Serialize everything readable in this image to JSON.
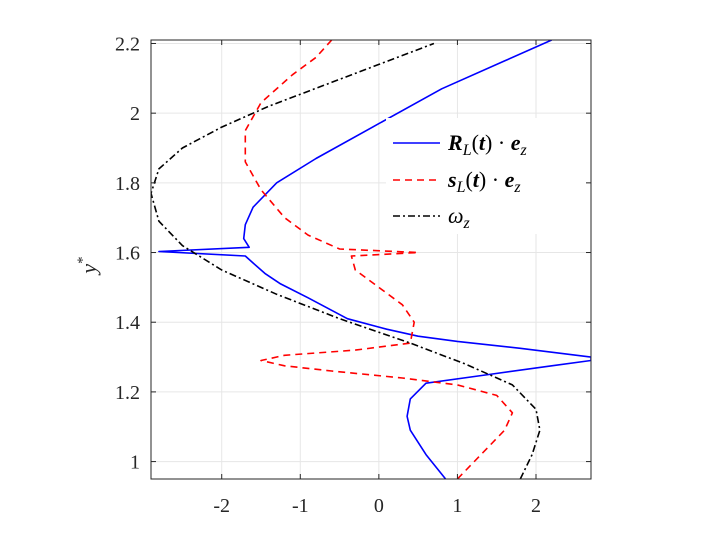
{
  "chart_data": {
    "type": "line",
    "xlabel": "",
    "ylabel": "y*",
    "xlim": [
      -2.9,
      2.7
    ],
    "ylim": [
      0.95,
      2.21
    ],
    "xticks": [
      -2,
      -1,
      0,
      1,
      2
    ],
    "xtick_labels": [
      "-2",
      "-1",
      "0",
      "1",
      "2"
    ],
    "yticks": [
      1,
      1.2,
      1.4,
      1.6,
      1.8,
      2,
      2.2
    ],
    "ytick_labels": [
      "1",
      "1.2",
      "1.4",
      "1.6",
      "1.8",
      "2",
      "2.2"
    ],
    "grid": true,
    "legend_position": "top-right",
    "series": [
      {
        "key": "R",
        "legend_parts": [
          "R",
          "L",
          "(",
          "t",
          ") · ",
          "e",
          "z"
        ],
        "color": "#0000ff",
        "dash": "solid",
        "points": [
          [
            0.85,
            0.95
          ],
          [
            0.6,
            1.02
          ],
          [
            0.4,
            1.09
          ],
          [
            0.36,
            1.13
          ],
          [
            0.4,
            1.18
          ],
          [
            0.6,
            1.225
          ],
          [
            1.4,
            1.25
          ],
          [
            2.2,
            1.275
          ],
          [
            2.7,
            1.29
          ],
          [
            2.7,
            1.3
          ],
          [
            1.8,
            1.325
          ],
          [
            1.0,
            1.345
          ],
          [
            0.5,
            1.36
          ],
          [
            0.1,
            1.38
          ],
          [
            -0.4,
            1.41
          ],
          [
            -0.9,
            1.47
          ],
          [
            -1.25,
            1.51
          ],
          [
            -1.45,
            1.54
          ],
          [
            -1.6,
            1.57
          ],
          [
            -1.7,
            1.59
          ],
          [
            -2.8,
            1.603
          ],
          [
            -1.65,
            1.615
          ],
          [
            -1.72,
            1.64
          ],
          [
            -1.7,
            1.68
          ],
          [
            -1.6,
            1.73
          ],
          [
            -1.3,
            1.8
          ],
          [
            -0.8,
            1.87
          ],
          [
            0.0,
            1.97
          ],
          [
            0.8,
            2.07
          ],
          [
            1.6,
            2.15
          ],
          [
            2.2,
            2.21
          ]
        ]
      },
      {
        "key": "s",
        "legend_parts": [
          "s",
          "L",
          "(",
          "t",
          ") · ",
          "e",
          "z"
        ],
        "color": "#ff0000",
        "dash": "dashed",
        "points": [
          [
            1.0,
            0.95
          ],
          [
            1.3,
            1.02
          ],
          [
            1.6,
            1.09
          ],
          [
            1.7,
            1.14
          ],
          [
            1.5,
            1.19
          ],
          [
            1.0,
            1.22
          ],
          [
            0.3,
            1.24
          ],
          [
            -0.6,
            1.26
          ],
          [
            -1.2,
            1.275
          ],
          [
            -1.5,
            1.29
          ],
          [
            -1.2,
            1.305
          ],
          [
            -0.3,
            1.32
          ],
          [
            0.4,
            1.34
          ],
          [
            0.45,
            1.4
          ],
          [
            0.3,
            1.45
          ],
          [
            0.0,
            1.5
          ],
          [
            -0.3,
            1.55
          ],
          [
            -0.35,
            1.59
          ],
          [
            0.5,
            1.6
          ],
          [
            -0.5,
            1.61
          ],
          [
            -0.9,
            1.65
          ],
          [
            -1.2,
            1.7
          ],
          [
            -1.5,
            1.78
          ],
          [
            -1.7,
            1.86
          ],
          [
            -1.7,
            1.95
          ],
          [
            -1.5,
            2.03
          ],
          [
            -1.1,
            2.11
          ],
          [
            -0.8,
            2.16
          ],
          [
            -0.6,
            2.21
          ]
        ]
      },
      {
        "key": "w",
        "legend_parts": [
          "ω",
          "z"
        ],
        "color": "#000000",
        "dash": "dashdot",
        "points": [
          [
            1.8,
            0.95
          ],
          [
            1.95,
            1.02
          ],
          [
            2.05,
            1.09
          ],
          [
            2.0,
            1.15
          ],
          [
            1.7,
            1.22
          ],
          [
            1.1,
            1.28
          ],
          [
            0.4,
            1.34
          ],
          [
            -0.5,
            1.41
          ],
          [
            -1.3,
            1.48
          ],
          [
            -2.0,
            1.55
          ],
          [
            -2.5,
            1.62
          ],
          [
            -2.8,
            1.69
          ],
          [
            -2.9,
            1.77
          ],
          [
            -2.8,
            1.84
          ],
          [
            -2.5,
            1.9
          ],
          [
            -2.0,
            1.96
          ],
          [
            -1.4,
            2.02
          ],
          [
            -0.7,
            2.08
          ],
          [
            0.0,
            2.14
          ],
          [
            0.7,
            2.2
          ]
        ]
      }
    ]
  }
}
